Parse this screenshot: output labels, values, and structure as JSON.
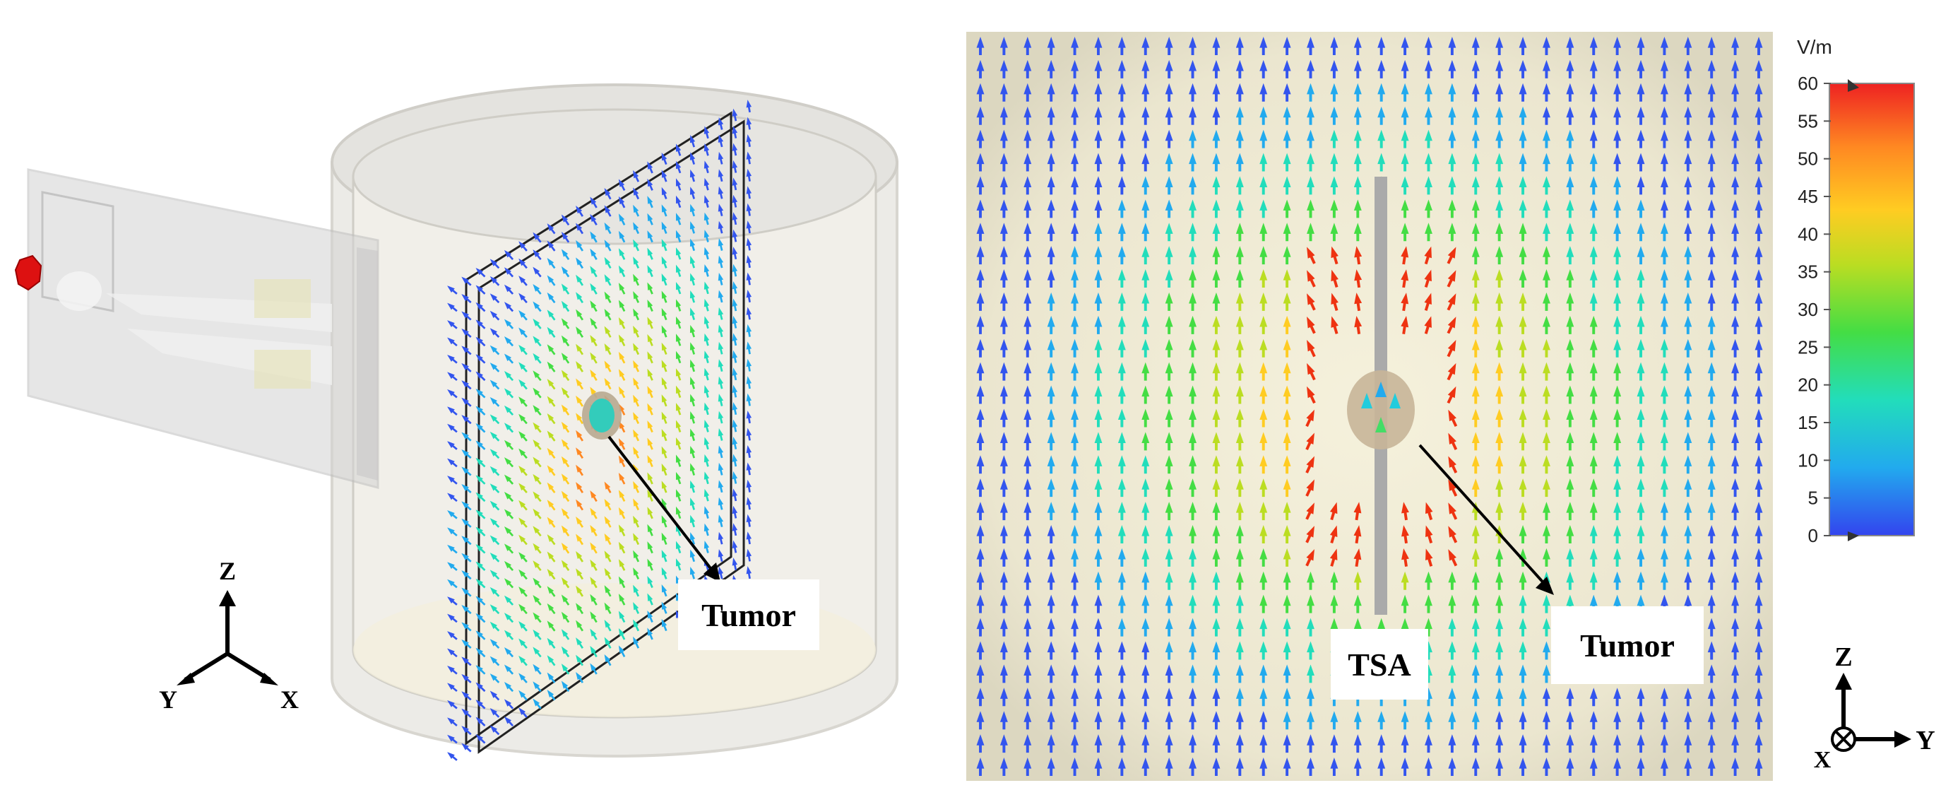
{
  "left_figure": {
    "callout_label": "Tumor",
    "axes": {
      "z": "Z",
      "y": "Y",
      "x": "X"
    }
  },
  "right_figure": {
    "callout_label": "Tumor",
    "antenna_label": "TSA",
    "axes": {
      "z": "Z",
      "y": "Y",
      "x": "X"
    },
    "colorbar": {
      "unit": "V/m",
      "min": 0,
      "max": 60,
      "ticks": [
        "60",
        "55",
        "50",
        "45",
        "40",
        "35",
        "30",
        "25",
        "20",
        "15",
        "10",
        "5",
        "0"
      ]
    }
  },
  "colors": {
    "colormap": [
      "#3355ee",
      "#22aaee",
      "#22ddbb",
      "#44dd44",
      "#bbdd22",
      "#ffcc22",
      "#ff8822",
      "#ee3311"
    ],
    "port": "#dd1111"
  }
}
